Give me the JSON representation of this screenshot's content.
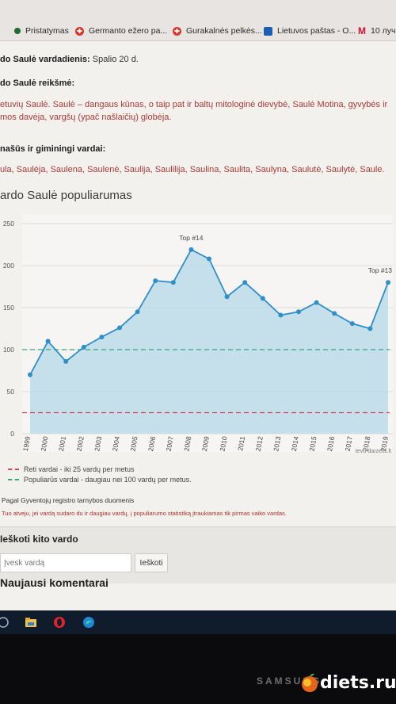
{
  "bookmarks": [
    {
      "label": "Pristatymas",
      "icon": "green-dot-icon"
    },
    {
      "label": "Germanto ežero pa...",
      "icon": "red-cross-icon"
    },
    {
      "label": "Gurakalnės pelkės...",
      "icon": "red-cross-icon"
    },
    {
      "label": "Lietuvos paštas - O...",
      "icon": "lp-logo-icon"
    },
    {
      "label": "10 луч",
      "icon": "m-logo-icon"
    }
  ],
  "article": {
    "nameday_label": "do Saulė vardadienis:",
    "nameday_value": "Spalio 20 d.",
    "meaning_heading": "do Saulė reikšmė:",
    "meaning_line1": "etuvių Saulė. Saulė – dangaus kūnas, o taip pat ir baltų mitologinė dievybė, Saulė Motina, gyvybės ir",
    "meaning_line2": "mos davėja, vargšų (ypač našlaičių) globėja.",
    "related_heading": "našūs ir giminingi vardai:",
    "related_names": "ula, Saulėja, Saulena, Saulenė, Saulija, Saulilija, Saulina, Saulita, Saulyna, Saulutė, Saulytė, Saule."
  },
  "popularity": {
    "title": "ardo Saulė populiarumas",
    "legend_rare": "Reti vardai - iki 25 vardų per metus",
    "legend_popular": "Populiarūs vardai - daugiau nei 100 vardų per metus.",
    "source": "Pagal Gyventojų registro tarnybos duomenis",
    "note": "Tuo atveju, jei vardą sudaro du ir daugiau vardų, į populiarumo statistiką įtraukiamas tik pirmas vaiko vardas."
  },
  "chart_data": {
    "type": "area",
    "x": [
      "1999",
      "2000",
      "2001",
      "2002",
      "2003",
      "2004",
      "2005",
      "2006",
      "2007",
      "2008",
      "2009",
      "2010",
      "2011",
      "2012",
      "2013",
      "2014",
      "2015",
      "2016",
      "2017",
      "2018",
      "2019"
    ],
    "values": [
      70,
      110,
      86,
      103,
      115,
      126,
      145,
      182,
      180,
      219,
      208,
      163,
      180,
      161,
      141,
      145,
      156,
      143,
      131,
      125,
      180
    ],
    "yticks": [
      "0",
      "50",
      "100",
      "150",
      "200",
      "250"
    ],
    "ylim": [
      0,
      250
    ],
    "annotations": [
      {
        "label": "Top #14",
        "x": "2008"
      },
      {
        "label": "Top #13",
        "x": "2019"
      }
    ],
    "reference_lines": [
      {
        "value": 100,
        "color": "#3aa37a"
      },
      {
        "value": 25,
        "color": "#d4465a"
      }
    ],
    "watermark": "tevu-darzelis.lt",
    "colors": {
      "line": "#2f8fc7",
      "fill": "#bcdce8",
      "points": "#2f8fc7"
    }
  },
  "search": {
    "title": "Ieškoti kito vardo",
    "placeholder": "Įvesk vardą",
    "button": "Ieškoti"
  },
  "comments_heading": "Naujausi komentarai",
  "monitor": {
    "brand": "SAMSUNG",
    "watermark": "diets.ru"
  }
}
